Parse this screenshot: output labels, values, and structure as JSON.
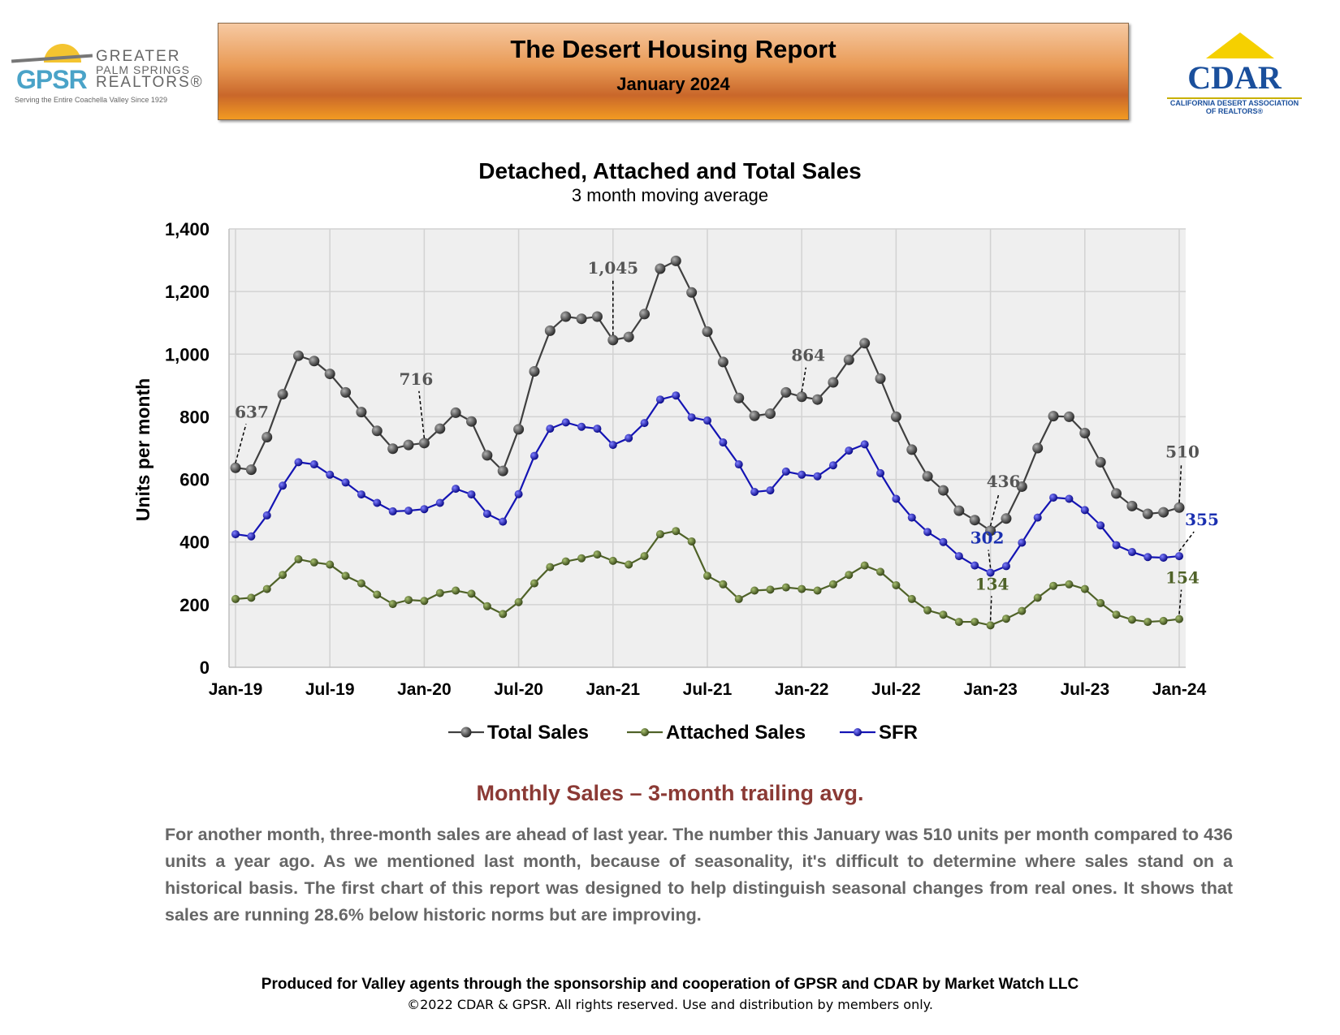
{
  "header": {
    "title": "The Desert Housing Report",
    "subtitle": "January 2024"
  },
  "logos": {
    "gpsr_letters": "GPSR",
    "gpsr_line1": "GREATER",
    "gpsr_line2": "PALM SPRINGS",
    "gpsr_line3": "REALTORS®",
    "gpsr_tagline": "Serving the Entire Coachella Valley Since 1929",
    "cdar_word": "CDAR",
    "cdar_line1": "CALIFORNIA DESERT ASSOCIATION",
    "cdar_line2": "OF REALTORS®"
  },
  "chart_data": {
    "type": "line",
    "title": "Detached, Attached and Total Sales",
    "subtitle": "3 month moving average",
    "ylabel": "Units per month",
    "ylim": [
      0,
      1400
    ],
    "yticks": [
      0,
      200,
      400,
      600,
      800,
      1000,
      1200,
      1400
    ],
    "ytick_labels": [
      "0",
      "200",
      "400",
      "600",
      "800",
      "1,000",
      "1,200",
      "1,400"
    ],
    "xtick_labels": [
      "Jan-19",
      "Jul-19",
      "Jan-20",
      "Jul-20",
      "Jan-21",
      "Jul-21",
      "Jan-22",
      "Jul-22",
      "Jan-23",
      "Jul-23",
      "Jan-24"
    ],
    "xtick_positions": [
      0,
      6,
      12,
      18,
      24,
      30,
      36,
      42,
      48,
      54,
      60
    ],
    "grid": true,
    "legend_position": "bottom",
    "x_start": "Jan-19",
    "x_end": "Jan-24",
    "series": [
      {
        "name": "Total Sales",
        "color": "#404040",
        "values": [
          637,
          631,
          735,
          872,
          995,
          978,
          937,
          878,
          815,
          755,
          698,
          710,
          716,
          762,
          813,
          785,
          677,
          627,
          760,
          945,
          1075,
          1120,
          1113,
          1120,
          1045,
          1055,
          1128,
          1273,
          1298,
          1197,
          1072,
          975,
          860,
          803,
          810,
          878,
          864,
          855,
          910,
          982,
          1035,
          922,
          800,
          695,
          610,
          565,
          500,
          470,
          436,
          475,
          577,
          700,
          802,
          800,
          748,
          655,
          555,
          515,
          490,
          495,
          510
        ],
        "annotations": [
          {
            "index": 0,
            "label": "637"
          },
          {
            "index": 12,
            "label": "716"
          },
          {
            "index": 24,
            "label": "1,045"
          },
          {
            "index": 36,
            "label": "864"
          },
          {
            "index": 48,
            "label": "436"
          },
          {
            "index": 60,
            "label": "510"
          }
        ]
      },
      {
        "name": "SFR",
        "color": "#1414b4",
        "values": [
          425,
          418,
          485,
          580,
          655,
          648,
          615,
          590,
          552,
          525,
          498,
          500,
          505,
          525,
          570,
          552,
          490,
          465,
          553,
          675,
          762,
          782,
          768,
          762,
          710,
          732,
          780,
          855,
          868,
          798,
          788,
          718,
          648,
          560,
          565,
          625,
          615,
          610,
          645,
          692,
          712,
          620,
          538,
          478,
          432,
          400,
          355,
          325,
          302,
          323,
          398,
          478,
          542,
          538,
          502,
          453,
          390,
          368,
          352,
          350,
          355
        ],
        "annotations": [
          {
            "index": 48,
            "label": "302"
          },
          {
            "index": 60,
            "label": "355"
          }
        ]
      },
      {
        "name": "Attached Sales",
        "color": "#4f6228",
        "values": [
          218,
          222,
          250,
          295,
          345,
          335,
          328,
          292,
          268,
          232,
          202,
          215,
          212,
          237,
          245,
          235,
          195,
          170,
          208,
          268,
          320,
          338,
          348,
          360,
          340,
          328,
          355,
          425,
          435,
          402,
          292,
          265,
          218,
          245,
          248,
          255,
          250,
          245,
          265,
          295,
          325,
          305,
          262,
          218,
          182,
          168,
          145,
          145,
          134,
          155,
          180,
          222,
          260,
          265,
          250,
          205,
          168,
          152,
          145,
          148,
          154
        ],
        "annotations": [
          {
            "index": 48,
            "label": "134"
          },
          {
            "index": 60,
            "label": "154"
          }
        ]
      }
    ],
    "legend_order": [
      "Total Sales",
      "Attached Sales",
      "SFR"
    ]
  },
  "section": {
    "title": "Monthly Sales – 3-month trailing avg.",
    "body": "For another month, three-month sales are ahead of last year. The number this January was 510 units per month compared to 436 units a year ago. As we mentioned last month, because of seasonality, it's difficult to determine where sales stand on a historical basis. The first chart of this report was designed to help distinguish seasonal changes from real ones. It shows that sales are running 28.6% below historic norms but are improving."
  },
  "footer": {
    "line1": "Produced for Valley agents through the sponsorship and cooperation of GPSR and CDAR by Market Watch LLC",
    "line2": "©2022 CDAR & GPSR.  All rights reserved.  Use and distribution by members only."
  }
}
